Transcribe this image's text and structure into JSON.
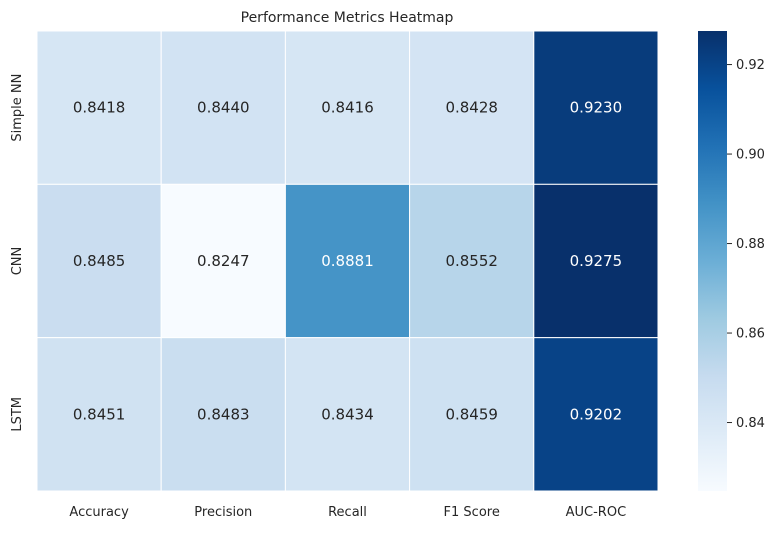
{
  "chart_data": {
    "type": "heatmap",
    "title": "Performance Metrics Heatmap",
    "xlabel": "",
    "ylabel": "",
    "x_categories": [
      "Accuracy",
      "Precision",
      "Recall",
      "F1 Score",
      "AUC-ROC"
    ],
    "y_categories": [
      "Simple NN",
      "CNN",
      "LSTM"
    ],
    "values": [
      [
        0.8418,
        0.844,
        0.8416,
        0.8428,
        0.923
      ],
      [
        0.8485,
        0.8247,
        0.8881,
        0.8552,
        0.9275
      ],
      [
        0.8451,
        0.8483,
        0.8434,
        0.8459,
        0.9202
      ]
    ],
    "cell_labels": [
      [
        "0.8418",
        "0.8440",
        "0.8416",
        "0.8428",
        "0.9230"
      ],
      [
        "0.8485",
        "0.8247",
        "0.8881",
        "0.8552",
        "0.9275"
      ],
      [
        "0.8451",
        "0.8483",
        "0.8434",
        "0.8459",
        "0.9202"
      ]
    ],
    "colormap": "Blues",
    "colorbar": {
      "range": [
        0.8247,
        0.9275
      ],
      "ticks": [
        0.84,
        0.86,
        0.88,
        0.9,
        0.92
      ],
      "tick_labels": [
        "0.84",
        "0.86",
        "0.88",
        "0.90",
        "0.92"
      ],
      "placement": "right"
    },
    "grid": false
  }
}
